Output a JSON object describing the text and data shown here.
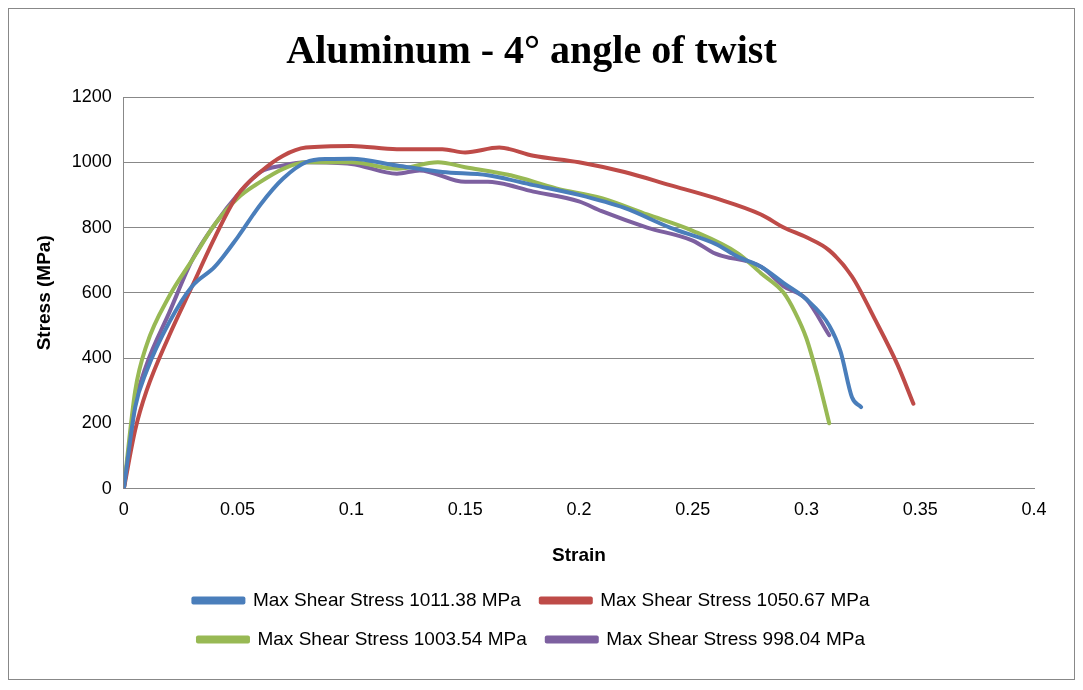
{
  "chart_data": {
    "type": "line",
    "title": "Aluminum - 4° angle of twist",
    "xlabel": "Strain",
    "ylabel": "Stress (MPa)",
    "xlim": [
      0,
      0.4
    ],
    "xticks": [
      0,
      0.05,
      0.1,
      0.15,
      0.2,
      0.25,
      0.3,
      0.35,
      0.4
    ],
    "ylim": [
      0,
      1200
    ],
    "yticks": [
      0,
      200,
      400,
      600,
      800,
      1000,
      1200
    ],
    "grid": "y",
    "legend": "bottom",
    "marker": "none",
    "line_style": "solid",
    "series": [
      {
        "name": "Max Shear Stress 1011.38 MPa",
        "color": "#4a7ebb",
        "x": [
          0,
          0.005,
          0.01,
          0.02,
          0.03,
          0.04,
          0.05,
          0.06,
          0.07,
          0.08,
          0.09,
          0.1,
          0.12,
          0.14,
          0.16,
          0.18,
          0.2,
          0.22,
          0.24,
          0.26,
          0.27,
          0.28,
          0.29,
          0.3,
          0.31,
          0.315,
          0.32,
          0.324
        ],
        "values": [
          0,
          250,
          360,
          510,
          620,
          680,
          770,
          870,
          950,
          1000,
          1010,
          1011,
          990,
          970,
          960,
          930,
          900,
          860,
          800,
          750,
          710,
          680,
          630,
          580,
          500,
          420,
          280,
          250
        ]
      },
      {
        "name": "Max Shear Stress 1050.67 MPa",
        "color": "#be4b48",
        "x": [
          0,
          0.005,
          0.01,
          0.02,
          0.03,
          0.04,
          0.05,
          0.06,
          0.07,
          0.08,
          0.1,
          0.12,
          0.14,
          0.15,
          0.165,
          0.18,
          0.2,
          0.22,
          0.24,
          0.26,
          0.28,
          0.29,
          0.3,
          0.31,
          0.32,
          0.33,
          0.34,
          0.347
        ],
        "values": [
          0,
          180,
          300,
          470,
          620,
          770,
          900,
          970,
          1020,
          1045,
          1050,
          1040,
          1040,
          1030,
          1045,
          1020,
          1000,
          970,
          930,
          890,
          840,
          800,
          770,
          730,
          650,
          520,
          380,
          260
        ]
      },
      {
        "name": "Max Shear Stress 1003.54 MPa",
        "color": "#98b954",
        "x": [
          0,
          0.005,
          0.01,
          0.02,
          0.03,
          0.04,
          0.05,
          0.06,
          0.07,
          0.08,
          0.1,
          0.12,
          0.138,
          0.15,
          0.17,
          0.19,
          0.21,
          0.23,
          0.25,
          0.27,
          0.28,
          0.29,
          0.295,
          0.3,
          0.305,
          0.31
        ],
        "values": [
          0,
          300,
          440,
          590,
          700,
          810,
          890,
          940,
          980,
          1000,
          1000,
          980,
          1000,
          985,
          960,
          920,
          890,
          840,
          790,
          720,
          660,
          600,
          540,
          460,
          340,
          200
        ]
      },
      {
        "name": "Max Shear Stress 998.04 MPa",
        "color": "#7d60a0",
        "x": [
          0,
          0.005,
          0.01,
          0.02,
          0.03,
          0.04,
          0.05,
          0.06,
          0.07,
          0.08,
          0.1,
          0.12,
          0.13,
          0.15,
          0.16,
          0.18,
          0.2,
          0.21,
          0.23,
          0.25,
          0.26,
          0.28,
          0.29,
          0.3,
          0.31
        ],
        "values": [
          0,
          260,
          380,
          540,
          700,
          810,
          900,
          970,
          990,
          1000,
          995,
          965,
          975,
          940,
          940,
          910,
          880,
          850,
          800,
          760,
          720,
          680,
          620,
          580,
          470
        ]
      }
    ]
  }
}
